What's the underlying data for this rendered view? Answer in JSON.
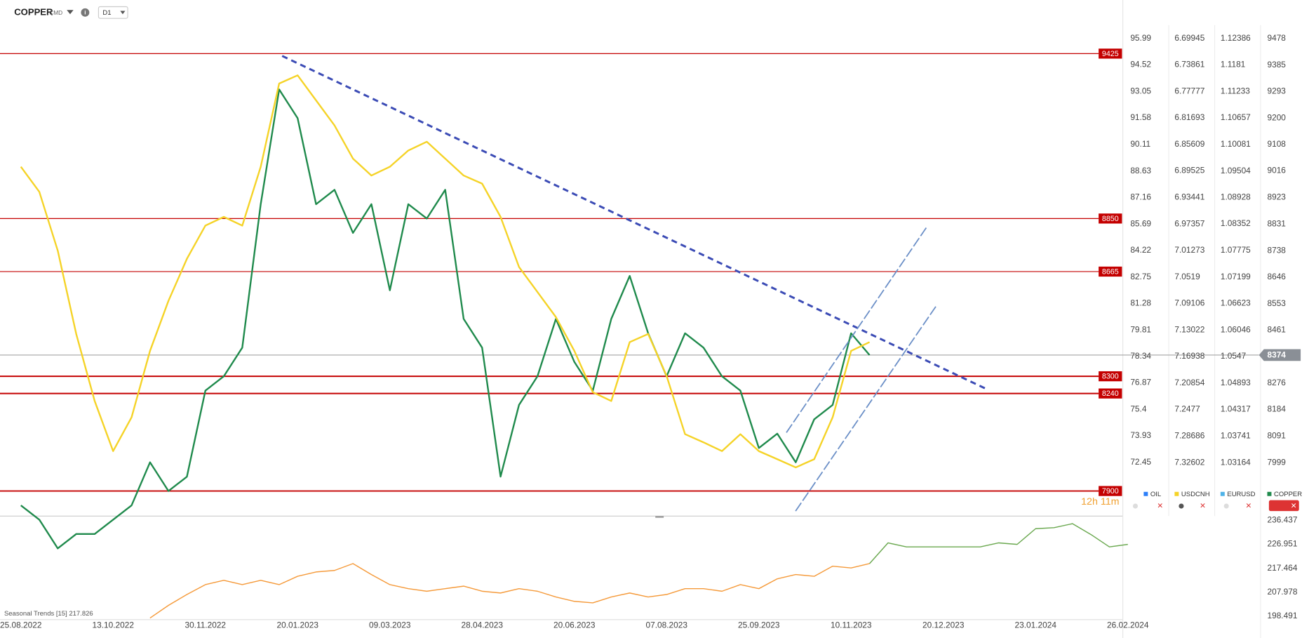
{
  "chart_data": [
    {
      "type": "line",
      "title": "COPPER",
      "subtitle": "CMD",
      "timeframe": "D1",
      "categories": [
        "25.08.2022",
        null,
        null,
        null,
        null,
        "13.10.2022",
        null,
        null,
        null,
        null,
        "30.11.2022",
        null,
        null,
        null,
        null,
        "20.01.2023",
        null,
        null,
        null,
        null,
        "09.03.2023",
        null,
        null,
        null,
        null,
        "28.04.2023",
        null,
        null,
        null,
        null,
        "20.06.2023",
        null,
        null,
        null,
        null,
        "07.08.2023",
        null,
        null,
        null,
        null,
        "25.09.2023",
        null,
        null,
        null,
        null,
        "10.11.2023",
        null,
        null,
        null,
        null,
        "20.12.2023",
        null,
        null,
        null,
        null,
        "23.01.2024",
        null,
        null,
        null,
        null,
        "26.02.2024"
      ],
      "series": [
        {
          "name": "COPPER",
          "color": "#1f8a4c",
          "axis": "y",
          "values": [
            7850,
            7800,
            7700,
            7750,
            7750,
            7800,
            7850,
            8000,
            7900,
            7950,
            8250,
            8300,
            8400,
            8900,
            9300,
            9200,
            8900,
            8950,
            8800,
            8900,
            8600,
            8900,
            8850,
            8950,
            8500,
            8400,
            7950,
            8200,
            8300,
            8500,
            8350,
            8250,
            8500,
            8650,
            8450,
            8300,
            8450,
            8400,
            8300,
            8250,
            8050,
            8100,
            8000,
            8150,
            8200,
            8450,
            8374,
            null,
            null,
            null,
            null,
            null,
            null,
            null,
            null,
            null,
            null,
            null,
            null,
            null,
            null
          ]
        },
        {
          "name": "USDCNH",
          "color": "#f5d327",
          "axis": "y2",
          "values": [
            6.889,
            6.926,
            7.013,
            7.136,
            7.235,
            7.309,
            7.259,
            7.161,
            7.087,
            7.025,
            6.976,
            6.963,
            6.976,
            6.889,
            6.766,
            6.754,
            6.791,
            6.828,
            6.877,
            6.902,
            6.889,
            6.865,
            6.852,
            6.877,
            6.902,
            6.914,
            6.963,
            7.037,
            7.074,
            7.111,
            7.161,
            7.222,
            7.235,
            7.148,
            7.136,
            7.198,
            7.284,
            7.296,
            7.309,
            7.284,
            7.309,
            7.321,
            7.333,
            7.321,
            7.259,
            7.161,
            7.148,
            null,
            null,
            null,
            null,
            null,
            null,
            null,
            null,
            null,
            null,
            null,
            null,
            null,
            null
          ]
        }
      ],
      "ylim": [
        7812.6,
        9553.7
      ],
      "yticks": [
        9478,
        9385,
        9293,
        9200,
        9108,
        9016,
        8923,
        8831,
        8738,
        8646,
        8553,
        8461,
        8276,
        8184,
        8091,
        7999
      ],
      "y2lim": [
        7.40497,
        6.66738
      ],
      "y2ticks": [
        6.69945,
        6.73861,
        6.77777,
        6.81693,
        6.85609,
        6.89525,
        6.93441,
        6.97357,
        7.01273,
        7.0519,
        7.09106,
        7.13022,
        7.16938,
        7.20854,
        7.2477,
        7.28686,
        7.32602
      ],
      "axes": [
        {
          "name": "OIL",
          "color": "#2d7ff9",
          "lim": [
            69.48,
            97.2
          ],
          "ticks": [
            95.99,
            94.52,
            93.05,
            91.58,
            90.11,
            88.63,
            87.16,
            85.69,
            84.22,
            82.75,
            81.28,
            79.81,
            78.34,
            76.87,
            75.4,
            73.93,
            72.45
          ]
        },
        {
          "name": "EURUSD",
          "color": "#4fb3e8",
          "lim": [
            1.02002,
            1.12858
          ],
          "ticks": [
            1.12386,
            1.1181,
            1.11233,
            1.10657,
            1.10081,
            1.09504,
            1.08928,
            1.08352,
            1.07775,
            1.07199,
            1.06623,
            1.06046,
            1.0547,
            1.04893,
            1.04317,
            1.03741,
            1.03164
          ]
        }
      ],
      "levels": [
        9425,
        8850,
        8665,
        8300,
        8240,
        7900
      ],
      "level_color": "#c40000",
      "current_price": 8374,
      "countdown": "12h 11m"
    },
    {
      "type": "line",
      "title": "Seasonal Trends [15] 217.826",
      "series": [
        {
          "color": "#f59a3a",
          "values": [
            null,
            null,
            null,
            null,
            null,
            null,
            null,
            197.8,
            202.8,
            207.1,
            211.0,
            212.7,
            211.0,
            212.7,
            211.0,
            214.3,
            216.0,
            216.6,
            219.3,
            215.0,
            211.0,
            209.4,
            208.4,
            209.4,
            210.4,
            208.4,
            207.7,
            209.4,
            208.4,
            206.1,
            204.4,
            203.8,
            206.1,
            207.7,
            206.1,
            207.1,
            209.4,
            209.4,
            208.4,
            211.0,
            209.4,
            213.3,
            215.0,
            214.3,
            218.3,
            217.6,
            219.3,
            null,
            null,
            null,
            null,
            null,
            null,
            null,
            null,
            null,
            null,
            null,
            null,
            null,
            null
          ]
        },
        {
          "color": "#6aa84f",
          "values": [
            null,
            null,
            null,
            null,
            null,
            null,
            null,
            null,
            null,
            null,
            null,
            null,
            null,
            null,
            null,
            null,
            null,
            null,
            null,
            null,
            null,
            null,
            null,
            null,
            null,
            null,
            null,
            null,
            null,
            null,
            null,
            null,
            null,
            null,
            null,
            null,
            null,
            null,
            null,
            null,
            null,
            null,
            null,
            null,
            null,
            null,
            219.3,
            227.5,
            225.9,
            225.9,
            225.9,
            225.9,
            225.9,
            227.5,
            226.9,
            233.1,
            233.5,
            235.1,
            230.8,
            225.9,
            226.9
          ]
        }
      ],
      "ylim": [
        197.171,
        237.427
      ],
      "yticks": [
        236.437,
        226.951,
        217.464,
        207.978,
        198.491
      ]
    }
  ]
}
